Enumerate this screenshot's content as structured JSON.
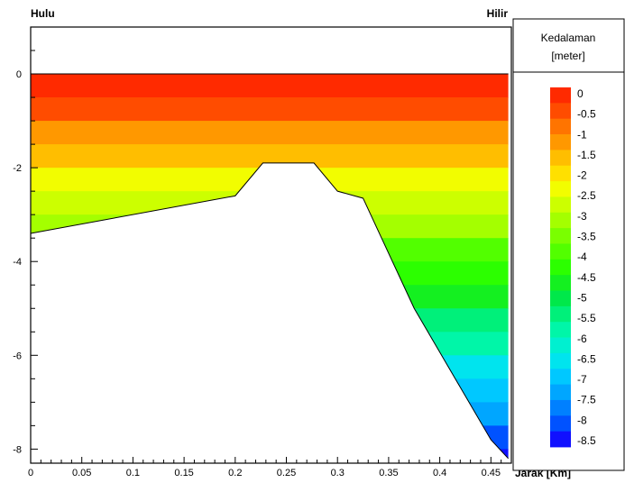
{
  "chart_data": {
    "type": "area",
    "title": "",
    "top_left_label": "Hulu",
    "top_right_label": "Hilir",
    "xlabel": "Jarak [Km]",
    "ylabel": "",
    "xlim": [
      0,
      0.47
    ],
    "ylim": [
      -8.3,
      1.0
    ],
    "x_ticks": [
      0,
      0.05,
      0.1,
      0.15,
      0.2,
      0.25,
      0.3,
      0.35,
      0.4,
      0.45
    ],
    "x_tick_labels": [
      "0",
      "0.05",
      "0.1",
      "0.15",
      "0.2",
      "0.25",
      "0.3",
      "0.35",
      "0.4",
      "0.45"
    ],
    "y_ticks": [
      0,
      -2,
      -4,
      -6,
      -8
    ],
    "y_tick_labels": [
      "0",
      "-2",
      "-4",
      "-6",
      "-8"
    ],
    "water_surface_level": 0,
    "bed_profile": {
      "x": [
        0,
        0.2,
        0.227,
        0.277,
        0.3,
        0.325,
        0.375,
        0.45,
        0.467
      ],
      "y": [
        -3.4,
        -2.6,
        -1.9,
        -1.9,
        -2.5,
        -2.65,
        -5.0,
        -7.8,
        -8.2
      ]
    },
    "legend": {
      "title_line1": "Kedalaman",
      "title_line2": "[meter]",
      "placement": "right",
      "levels": [
        "0",
        "-0.5",
        "-1",
        "-1.5",
        "-2",
        "-2.5",
        "-3",
        "-3.5",
        "-4",
        "-4.5",
        "-5",
        "-5.5",
        "-6",
        "-6.5",
        "-7",
        "-7.5",
        "-8",
        "-8.5"
      ],
      "colors": [
        "#ff2a00",
        "#ff4c00",
        "#ff7400",
        "#ff9800",
        "#ffbe00",
        "#ffe000",
        "#f2fd00",
        "#ccff00",
        "#a4ff00",
        "#7aff00",
        "#52ff00",
        "#2cff00",
        "#14f020",
        "#00e84a",
        "#00f07a",
        "#00f6a8",
        "#00f0d0",
        "#00e4ee",
        "#00c8ff",
        "#00a6ff",
        "#0080ff",
        "#0052ff",
        "#1010ff"
      ]
    }
  }
}
